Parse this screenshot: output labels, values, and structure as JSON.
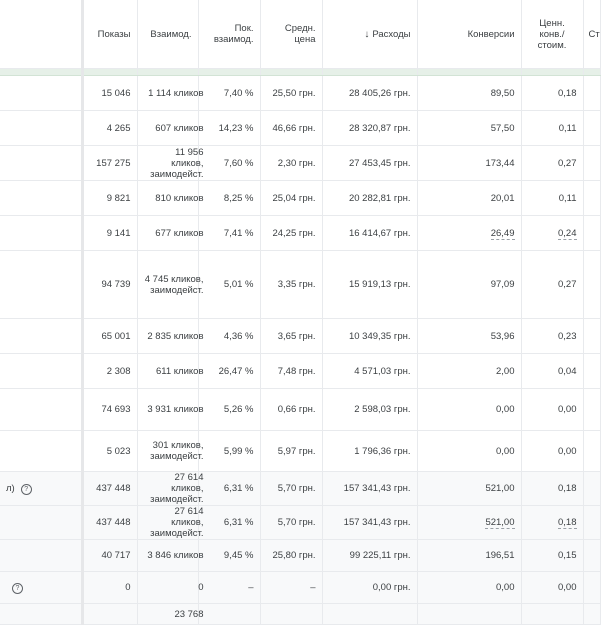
{
  "headers": {
    "impressions": "Показы",
    "interactions": "Взаимод.",
    "interaction_rate": "Пок. взаимод.",
    "avg_cost": "Средн. цена",
    "cost": "Расходы",
    "conversions": "Конверсии",
    "conv_value_cost": "Ценн. конв./ стоим.",
    "next": "Ст",
    "sort_icon": "arrow-down-icon"
  },
  "rows": [
    {
      "first": "",
      "impressions": "15 046",
      "interactions": "1 114 кликов",
      "rate": "7,40 %",
      "avg": "25,50 грн.",
      "cost": "28 405,26 грн.",
      "conv": "89,50",
      "cvc": "0,18"
    },
    {
      "first": "",
      "impressions": "4 265",
      "interactions": "607 кликов",
      "rate": "14,23 %",
      "avg": "46,66 грн.",
      "cost": "28 320,87 грн.",
      "conv": "57,50",
      "cvc": "0,11"
    },
    {
      "first": "",
      "impressions": "157 275",
      "interactions": "11 956 кликов, заимодейст.",
      "rate": "7,60 %",
      "avg": "2,30 грн.",
      "cost": "27 453,45 грн.",
      "conv": "173,44",
      "cvc": "0,27"
    },
    {
      "first": "",
      "impressions": "9 821",
      "interactions": "810 кликов",
      "rate": "8,25 %",
      "avg": "25,04 грн.",
      "cost": "20 282,81 грн.",
      "conv": "20,01",
      "cvc": "0,11"
    },
    {
      "first": "",
      "impressions": "9 141",
      "interactions": "677 кликов",
      "rate": "7,41 %",
      "avg": "24,25 грн.",
      "cost": "16 414,67 грн.",
      "conv": "26,49",
      "cvc": "0,24",
      "underline": true
    },
    {
      "first": "",
      "impressions": "94 739",
      "interactions": "4 745 кликов, заимодейст.",
      "rate": "5,01 %",
      "avg": "3,35 грн.",
      "cost": "15 919,13 грн.",
      "conv": "97,09",
      "cvc": "0,27",
      "tall": true
    },
    {
      "first": "",
      "impressions": "65 001",
      "interactions": "2 835 кликов",
      "rate": "4,36 %",
      "avg": "3,65 грн.",
      "cost": "10 349,35 грн.",
      "conv": "53,96",
      "cvc": "0,23"
    },
    {
      "first": "",
      "impressions": "2 308",
      "interactions": "611 кликов",
      "rate": "26,47 %",
      "avg": "7,48 грн.",
      "cost": "4 571,03 грн.",
      "conv": "2,00",
      "cvc": "0,04"
    },
    {
      "first": "",
      "impressions": "74 693",
      "interactions": "3 931 кликов",
      "rate": "5,26 %",
      "avg": "0,66 грн.",
      "cost": "2 598,03 грн.",
      "conv": "0,00",
      "cvc": "0,00"
    },
    {
      "first": "",
      "impressions": "5 023",
      "interactions": "301 кликов, заимодейст.",
      "rate": "5,99 %",
      "avg": "5,97 грн.",
      "cost": "1 796,36 грн.",
      "conv": "0,00",
      "cvc": "0,00"
    }
  ],
  "totals": [
    {
      "first": "л)",
      "help": true,
      "impressions": "437 448",
      "interactions": "27 614 кликов, заимодейст.",
      "rate": "6,31 %",
      "avg": "5,70 грн.",
      "cost": "157 341,43 грн.",
      "conv": "521,00",
      "cvc": "0,18"
    },
    {
      "first": "",
      "impressions": "437 448",
      "interactions": "27 614 кликов, заимодейст.",
      "rate": "6,31 %",
      "avg": "5,70 грн.",
      "cost": "157 341,43 грн.",
      "conv": "521,00",
      "cvc": "0,18",
      "underline": true
    },
    {
      "first": "",
      "impressions": "40 717",
      "interactions": "3 846 кликов",
      "rate": "9,45 %",
      "avg": "25,80 грн.",
      "cost": "99 225,11 грн.",
      "conv": "196,51",
      "cvc": "0,15"
    },
    {
      "first": "",
      "help": true,
      "impressions": "0",
      "interactions": "0",
      "rate": "–",
      "avg": "–",
      "cost": "0,00 грн.",
      "conv": "0,00",
      "cvc": "0,00"
    },
    {
      "first": "",
      "impressions": "",
      "interactions": "23 768",
      "rate": "",
      "avg": "",
      "cost": "",
      "conv": "",
      "cvc": ""
    }
  ]
}
